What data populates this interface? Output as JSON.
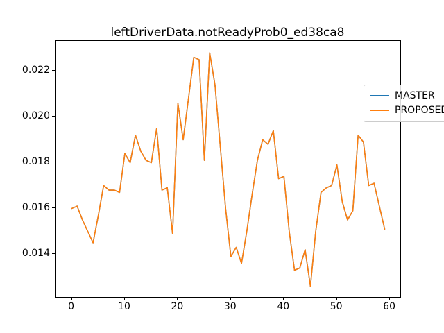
{
  "title": "leftDriverData.notReadyProb0_ed38ca8",
  "legend": {
    "position": "upper right",
    "entries": [
      {
        "label": "MASTER",
        "color": "#1f77b4"
      },
      {
        "label": "PROPOSED",
        "color": "#ff7f0e"
      }
    ]
  },
  "axes": {
    "x_tick_labels": [
      "0",
      "10",
      "20",
      "30",
      "40",
      "50",
      "60"
    ],
    "x_tick_values": [
      0,
      10,
      20,
      30,
      40,
      50,
      60
    ],
    "y_tick_labels": [
      "0.014",
      "0.016",
      "0.018",
      "0.020",
      "0.022"
    ],
    "y_tick_values": [
      0.014,
      0.016,
      0.018,
      0.02,
      0.022
    ],
    "xlim": [
      -2.95,
      61.95
    ],
    "ylim": [
      0.01211,
      0.02331
    ]
  },
  "chart_data": {
    "type": "line",
    "title": "leftDriverData.notReadyProb0_ed38ca8",
    "xlabel": "",
    "ylabel": "",
    "grid": false,
    "legend_position": "upper right",
    "xlim": [
      -2.95,
      61.95
    ],
    "ylim": [
      0.01211,
      0.02331
    ],
    "x": [
      0,
      1,
      2,
      3,
      4,
      5,
      6,
      7,
      8,
      9,
      10,
      11,
      12,
      13,
      14,
      15,
      16,
      17,
      18,
      19,
      20,
      21,
      22,
      23,
      24,
      25,
      26,
      27,
      28,
      29,
      30,
      31,
      32,
      33,
      34,
      35,
      36,
      37,
      38,
      39,
      40,
      41,
      42,
      43,
      44,
      45,
      46,
      47,
      48,
      49,
      50,
      51,
      52,
      53,
      54,
      55,
      56,
      57,
      58,
      59
    ],
    "series": [
      {
        "name": "MASTER",
        "color": "#1f77b4",
        "values": [
          0.016,
          0.0161,
          0.0155,
          0.015,
          0.0145,
          0.0157,
          0.017,
          0.0168,
          0.0168,
          0.0167,
          0.0184,
          0.018,
          0.0192,
          0.0185,
          0.0181,
          0.018,
          0.0195,
          0.0168,
          0.0169,
          0.0149,
          0.0206,
          0.019,
          0.0208,
          0.0226,
          0.0225,
          0.0181,
          0.0228,
          0.0214,
          0.0187,
          0.016,
          0.0139,
          0.0143,
          0.0136,
          0.015,
          0.0166,
          0.0181,
          0.019,
          0.0188,
          0.0194,
          0.0173,
          0.0174,
          0.015,
          0.0133,
          0.0134,
          0.0142,
          0.0126,
          0.015,
          0.0167,
          0.0169,
          0.017,
          0.0179,
          0.0163,
          0.0155,
          0.0159,
          0.0192,
          0.0189,
          0.017,
          0.0171,
          0.0161,
          0.0151
        ]
      },
      {
        "name": "PROPOSED",
        "color": "#ff7f0e",
        "values": [
          0.016,
          0.0161,
          0.0155,
          0.015,
          0.0145,
          0.0157,
          0.017,
          0.0168,
          0.0168,
          0.0167,
          0.0184,
          0.018,
          0.0192,
          0.0185,
          0.0181,
          0.018,
          0.0195,
          0.0168,
          0.0169,
          0.0149,
          0.0206,
          0.019,
          0.0208,
          0.0226,
          0.0225,
          0.0181,
          0.0228,
          0.0214,
          0.0187,
          0.016,
          0.0139,
          0.0143,
          0.0136,
          0.015,
          0.0166,
          0.0181,
          0.019,
          0.0188,
          0.0194,
          0.0173,
          0.0174,
          0.015,
          0.0133,
          0.0134,
          0.0142,
          0.0126,
          0.015,
          0.0167,
          0.0169,
          0.017,
          0.0179,
          0.0163,
          0.0155,
          0.0159,
          0.0192,
          0.0189,
          0.017,
          0.0171,
          0.0161,
          0.0151
        ]
      }
    ]
  }
}
